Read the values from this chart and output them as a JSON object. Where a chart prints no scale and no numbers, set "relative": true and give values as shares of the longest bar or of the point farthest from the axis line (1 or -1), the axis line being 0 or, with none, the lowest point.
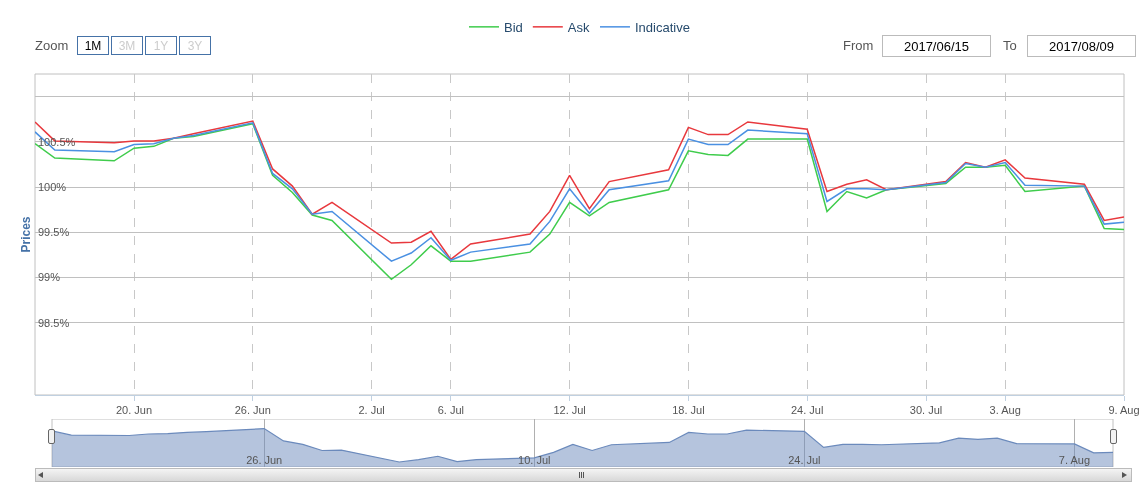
{
  "chart_data": [
    {
      "type": "line",
      "ylabel": "Prices",
      "legend": "top",
      "grid": true,
      "marker": "none",
      "line_style": "solid",
      "annotations": [
        "Zoom",
        "1M",
        "3M",
        "1Y",
        "3Y",
        "From",
        "2017/06/15",
        "To",
        "2017/08/09"
      ],
      "x": [
        "2017-06-15",
        "2017-06-16",
        "2017-06-19",
        "2017-06-20",
        "2017-06-21",
        "2017-06-22",
        "2017-06-23",
        "2017-06-26",
        "2017-06-27",
        "2017-06-28",
        "2017-06-29",
        "2017-06-30",
        "2017-07-03",
        "2017-07-04",
        "2017-07-05",
        "2017-07-06",
        "2017-07-07",
        "2017-07-10",
        "2017-07-11",
        "2017-07-12",
        "2017-07-13",
        "2017-07-14",
        "2017-07-17",
        "2017-07-18",
        "2017-07-19",
        "2017-07-20",
        "2017-07-21",
        "2017-07-24",
        "2017-07-25",
        "2017-07-26",
        "2017-07-27",
        "2017-07-28",
        "2017-07-31",
        "2017-08-01",
        "2017-08-02",
        "2017-08-03",
        "2017-08-04",
        "2017-08-07",
        "2017-08-08",
        "2017-08-09"
      ],
      "xlim": [
        "2017-06-15",
        "2017-08-09"
      ],
      "xticks": [
        {
          "value": "2017-06-20",
          "label": "20. Jun"
        },
        {
          "value": "2017-06-26",
          "label": "26. Jun"
        },
        {
          "value": "2017-07-02",
          "label": "2. Jul"
        },
        {
          "value": "2017-07-06",
          "label": "6. Jul"
        },
        {
          "value": "2017-07-12",
          "label": "12. Jul"
        },
        {
          "value": "2017-07-18",
          "label": "18. Jul"
        },
        {
          "value": "2017-07-24",
          "label": "24. Jul"
        },
        {
          "value": "2017-07-30",
          "label": "30. Jul"
        },
        {
          "value": "2017-08-03",
          "label": "3. Aug"
        },
        {
          "value": "2017-08-09",
          "label": "9. Aug"
        }
      ],
      "ylim": [
        97.7,
        101.25
      ],
      "yticks": [
        {
          "value": 98.5,
          "label": "98.5%"
        },
        {
          "value": 99,
          "label": "99%"
        },
        {
          "value": 99.5,
          "label": "99.5%"
        },
        {
          "value": 100,
          "label": "100%"
        },
        {
          "value": 100.5,
          "label": "100.5%"
        },
        {
          "value": 101,
          "label": null
        }
      ],
      "series": [
        {
          "name": "Bid",
          "color": "#3fcc4c",
          "values": [
            100.48,
            100.32,
            100.29,
            100.43,
            100.45,
            100.54,
            100.56,
            100.7,
            100.13,
            99.94,
            99.69,
            99.63,
            98.98,
            99.14,
            99.35,
            99.18,
            99.18,
            99.28,
            99.48,
            99.83,
            99.68,
            99.83,
            99.97,
            100.4,
            100.36,
            100.35,
            100.53,
            100.53,
            99.73,
            99.95,
            99.88,
            99.97,
            100.04,
            100.22,
            100.22,
            100.24,
            99.95,
            100.01,
            99.54,
            99.53
          ]
        },
        {
          "name": "Ask",
          "color": "#e8383d",
          "values": [
            100.72,
            100.51,
            100.49,
            100.51,
            100.51,
            100.54,
            100.59,
            100.73,
            100.2,
            100.01,
            99.7,
            99.83,
            99.38,
            99.39,
            99.51,
            99.2,
            99.37,
            99.48,
            99.73,
            100.13,
            99.76,
            100.06,
            100.19,
            100.66,
            100.58,
            100.58,
            100.72,
            100.64,
            99.95,
            100.03,
            100.08,
            99.97,
            100.06,
            100.27,
            100.22,
            100.3,
            100.1,
            100.03,
            99.63,
            99.67
          ]
        },
        {
          "name": "Indicative",
          "color": "#4a90e2",
          "values": [
            100.61,
            100.41,
            100.39,
            100.47,
            100.48,
            100.54,
            100.57,
            100.71,
            100.15,
            99.98,
            99.7,
            99.73,
            99.18,
            99.27,
            99.44,
            99.19,
            99.28,
            99.37,
            99.62,
            99.98,
            99.71,
            99.97,
            100.07,
            100.53,
            100.47,
            100.47,
            100.63,
            100.59,
            99.84,
            99.98,
            99.98,
            99.97,
            100.05,
            100.26,
            100.22,
            100.27,
            100.02,
            100.01,
            99.59,
            99.61
          ]
        }
      ]
    },
    {
      "type": "area",
      "relative": true,
      "grid": "x",
      "color": "#6b8abc",
      "x": [
        "2017-06-15",
        "2017-06-16",
        "2017-06-19",
        "2017-06-20",
        "2017-06-21",
        "2017-06-22",
        "2017-06-23",
        "2017-06-26",
        "2017-06-27",
        "2017-06-28",
        "2017-06-29",
        "2017-06-30",
        "2017-07-03",
        "2017-07-04",
        "2017-07-05",
        "2017-07-06",
        "2017-07-07",
        "2017-07-10",
        "2017-07-11",
        "2017-07-12",
        "2017-07-13",
        "2017-07-14",
        "2017-07-17",
        "2017-07-18",
        "2017-07-19",
        "2017-07-20",
        "2017-07-21",
        "2017-07-24",
        "2017-07-25",
        "2017-07-26",
        "2017-07-27",
        "2017-07-28",
        "2017-07-31",
        "2017-08-01",
        "2017-08-02",
        "2017-08-03",
        "2017-08-04",
        "2017-08-07",
        "2017-08-08",
        "2017-08-09"
      ],
      "xlim": [
        "2017-06-15",
        "2017-08-09"
      ],
      "xticks": [
        {
          "value": "2017-06-26",
          "label": "26. Jun"
        },
        {
          "value": "2017-07-10",
          "label": "10. Jul"
        },
        {
          "value": "2017-07-24",
          "label": "24. Jul"
        },
        {
          "value": "2017-08-07",
          "label": "7. Aug"
        }
      ],
      "values": [
        0.94,
        0.83,
        0.82,
        0.86,
        0.87,
        0.9,
        0.92,
        1,
        0.68,
        0.59,
        0.43,
        0.44,
        0.13,
        0.19,
        0.28,
        0.14,
        0.19,
        0.24,
        0.38,
        0.59,
        0.43,
        0.58,
        0.64,
        0.9,
        0.86,
        0.86,
        0.96,
        0.93,
        0.51,
        0.59,
        0.59,
        0.58,
        0.63,
        0.75,
        0.72,
        0.75,
        0.61,
        0.6,
        0.37,
        0.38
      ]
    }
  ]
}
